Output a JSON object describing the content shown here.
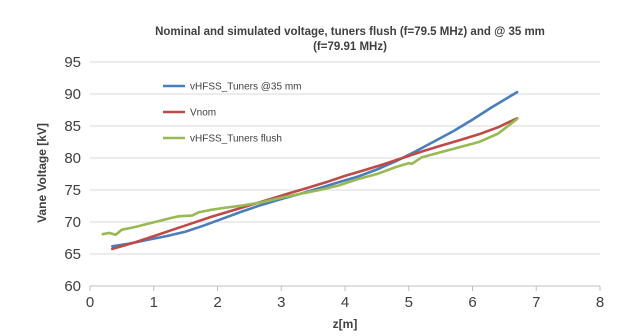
{
  "chart_data": {
    "type": "line",
    "title_line1": "Nominal and simulated voltage, tuners flush (f=79.5 MHz) and @ 35 mm",
    "title_line2": "(f=79.91 MHz)",
    "xlabel": "z[m]",
    "ylabel": "Vane Voltage [kV]",
    "xlim": [
      0,
      8
    ],
    "ylim": [
      60,
      95
    ],
    "xticks": [
      "0",
      "1",
      "2",
      "3",
      "4",
      "5",
      "6",
      "7",
      "8"
    ],
    "yticks": [
      "60",
      "65",
      "70",
      "75",
      "80",
      "85",
      "90",
      "95"
    ],
    "grid": "horizontal",
    "legend_position": "top-left",
    "series": [
      {
        "name": "vHFSS_Tuners @35 mm",
        "color": "#4a7ebb",
        "points": [
          [
            0.35,
            66.2
          ],
          [
            0.6,
            66.6
          ],
          [
            0.9,
            67.2
          ],
          [
            1.2,
            67.8
          ],
          [
            1.5,
            68.5
          ],
          [
            1.8,
            69.5
          ],
          [
            2.1,
            70.6
          ],
          [
            2.4,
            71.7
          ],
          [
            2.7,
            72.7
          ],
          [
            3.0,
            73.6
          ],
          [
            3.3,
            74.4
          ],
          [
            3.6,
            75.3
          ],
          [
            3.9,
            76.2
          ],
          [
            4.2,
            77.1
          ],
          [
            4.5,
            78.2
          ],
          [
            4.8,
            79.5
          ],
          [
            5.1,
            81.0
          ],
          [
            5.4,
            82.6
          ],
          [
            5.7,
            84.2
          ],
          [
            6.0,
            86.0
          ],
          [
            6.3,
            87.9
          ],
          [
            6.7,
            90.3
          ]
        ]
      },
      {
        "name": "Vnom",
        "color": "#be4b48",
        "points": [
          [
            0.35,
            65.8
          ],
          [
            0.7,
            66.8
          ],
          [
            1.0,
            67.8
          ],
          [
            1.3,
            68.8
          ],
          [
            1.6,
            69.8
          ],
          [
            1.9,
            70.8
          ],
          [
            2.2,
            71.7
          ],
          [
            2.5,
            72.6
          ],
          [
            2.8,
            73.5
          ],
          [
            3.1,
            74.4
          ],
          [
            3.4,
            75.3
          ],
          [
            3.7,
            76.2
          ],
          [
            4.0,
            77.2
          ],
          [
            4.3,
            78.1
          ],
          [
            4.6,
            79.0
          ],
          [
            4.9,
            80.0
          ],
          [
            5.2,
            81.0
          ],
          [
            5.5,
            81.9
          ],
          [
            5.8,
            82.8
          ],
          [
            6.1,
            83.7
          ],
          [
            6.4,
            84.8
          ],
          [
            6.7,
            86.2
          ]
        ]
      },
      {
        "name": "vHFSS_Tuners flush",
        "color": "#98b954",
        "points": [
          [
            0.2,
            68.1
          ],
          [
            0.3,
            68.3
          ],
          [
            0.4,
            68.0
          ],
          [
            0.5,
            68.8
          ],
          [
            0.7,
            69.2
          ],
          [
            0.9,
            69.7
          ],
          [
            1.1,
            70.2
          ],
          [
            1.3,
            70.7
          ],
          [
            1.4,
            70.9
          ],
          [
            1.6,
            71.0
          ],
          [
            1.7,
            71.5
          ],
          [
            1.9,
            71.9
          ],
          [
            2.1,
            72.2
          ],
          [
            2.4,
            72.6
          ],
          [
            2.7,
            73.1
          ],
          [
            3.0,
            73.8
          ],
          [
            3.3,
            74.4
          ],
          [
            3.6,
            75.0
          ],
          [
            3.9,
            75.7
          ],
          [
            4.2,
            76.7
          ],
          [
            4.5,
            77.5
          ],
          [
            4.8,
            78.6
          ],
          [
            5.0,
            79.2
          ],
          [
            5.05,
            79.1
          ],
          [
            5.2,
            80.1
          ],
          [
            5.5,
            80.9
          ],
          [
            5.8,
            81.7
          ],
          [
            6.1,
            82.5
          ],
          [
            6.4,
            83.8
          ],
          [
            6.7,
            86.1
          ]
        ]
      }
    ]
  }
}
